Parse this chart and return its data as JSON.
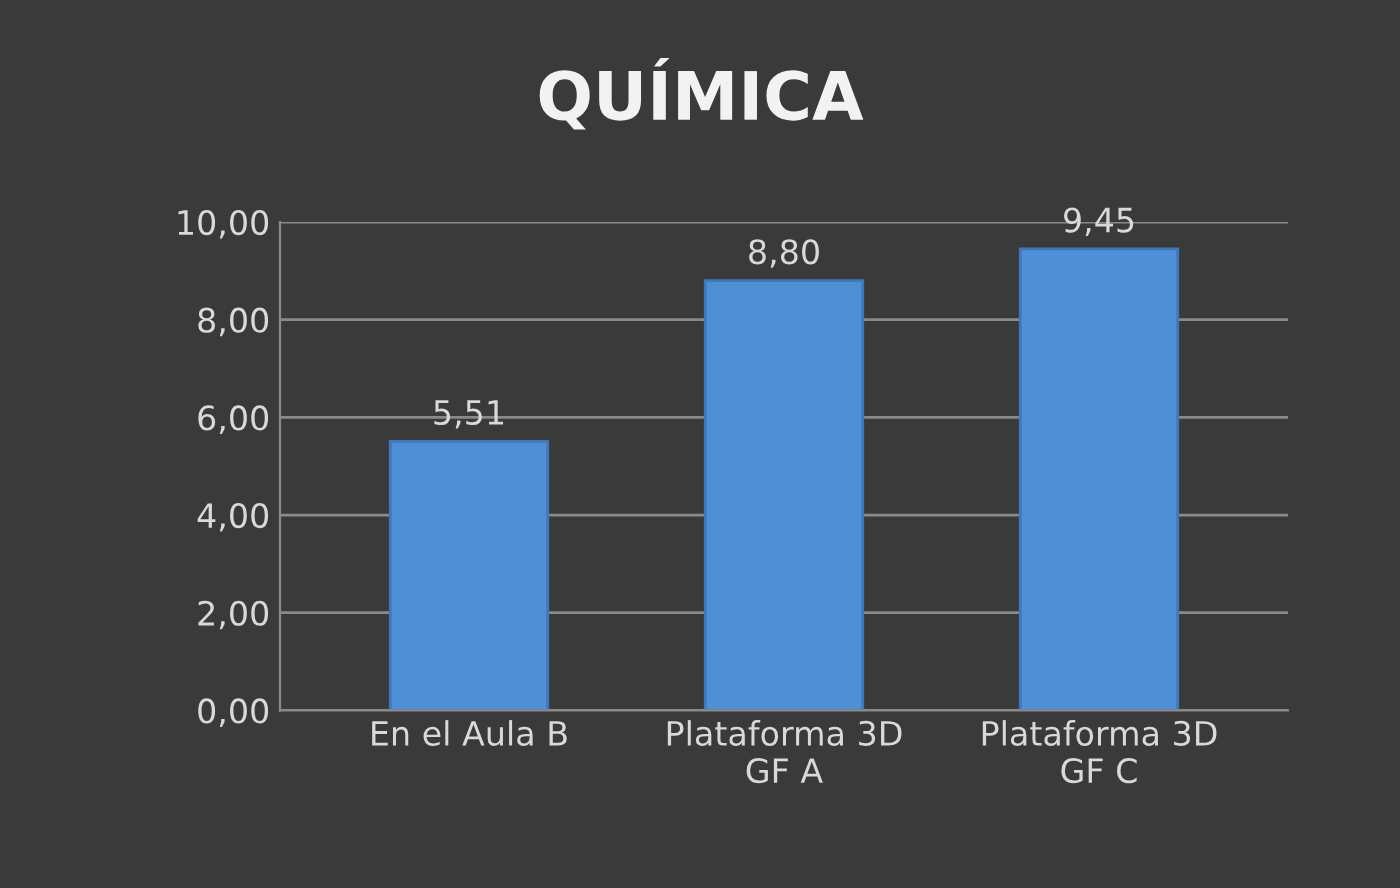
{
  "chart_data": {
    "type": "bar",
    "title": "QUÍMICA",
    "categories": [
      "En el Aula B",
      "Plataforma 3D\nGF A",
      "Plataforma 3D\nGF C"
    ],
    "values": [
      5.51,
      8.8,
      9.45
    ],
    "value_labels": [
      "5,51",
      "8,80",
      "9,45"
    ],
    "color": "#4f8fd6",
    "ylim": [
      0,
      10
    ],
    "yticks": [
      {
        "value": 0,
        "label": "0,00"
      },
      {
        "value": 2,
        "label": "2,00"
      },
      {
        "value": 4,
        "label": "4,00"
      },
      {
        "value": 6,
        "label": "6,00"
      },
      {
        "value": 8,
        "label": "8,00"
      },
      {
        "value": 10,
        "label": "10,00"
      }
    ],
    "grid": "y"
  }
}
